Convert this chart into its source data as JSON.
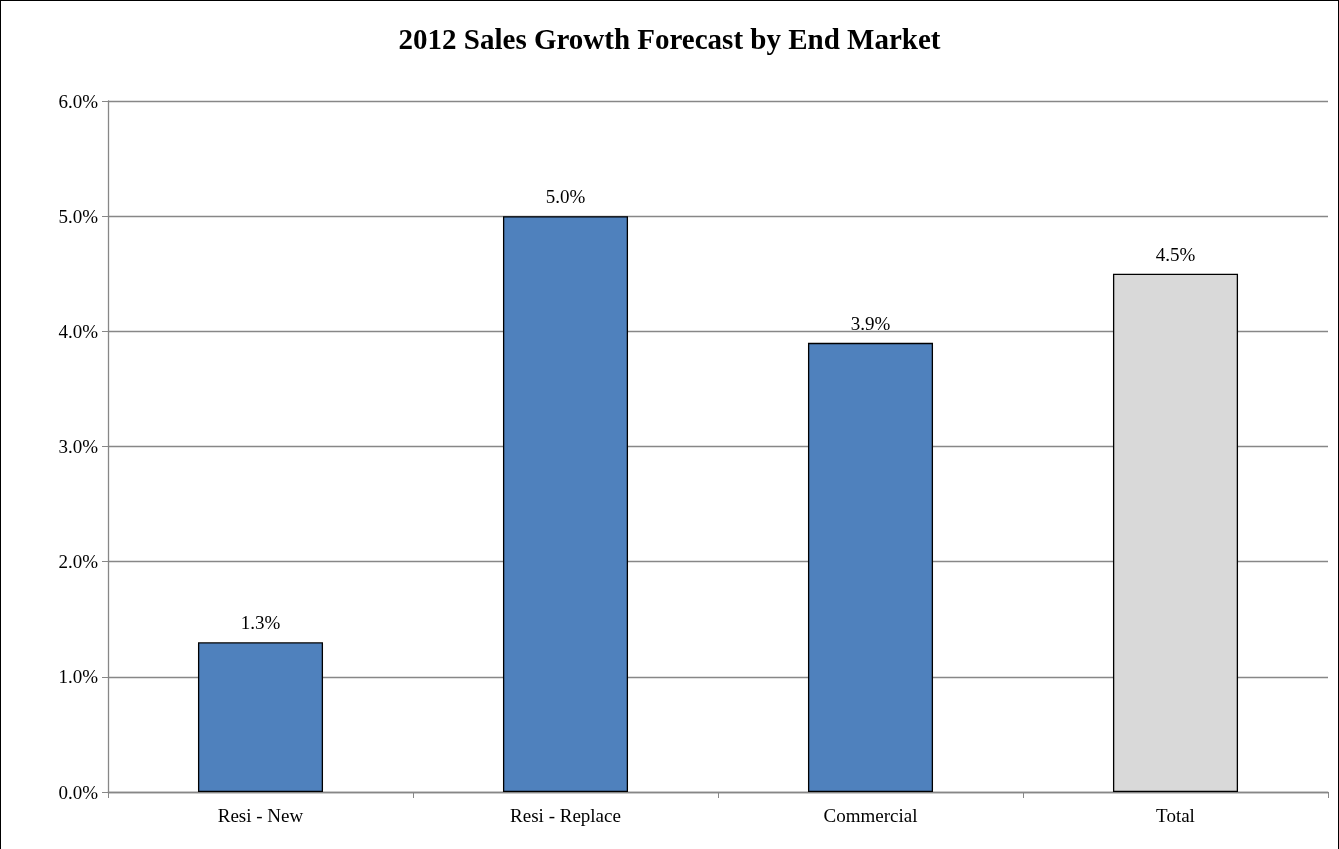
{
  "chart_data": {
    "type": "bar",
    "title": "2012 Sales Growth Forecast by End Market",
    "categories": [
      "Resi - New",
      "Resi - Replace",
      "Commercial",
      "Total"
    ],
    "values": [
      1.3,
      5.0,
      3.9,
      4.5
    ],
    "colors": [
      "#4f81bd",
      "#4f81bd",
      "#4f81bd",
      "#d9d9d9"
    ],
    "value_labels": [
      "1.3%",
      "5.0%",
      "3.9%",
      "4.5%"
    ],
    "ylim": [
      0,
      6
    ],
    "yticks": [
      {
        "value": 0,
        "label": "0.0%"
      },
      {
        "value": 1,
        "label": "1.0%"
      },
      {
        "value": 2,
        "label": "2.0%"
      },
      {
        "value": 3,
        "label": "3.0%"
      },
      {
        "value": 4,
        "label": "4.0%"
      },
      {
        "value": 5,
        "label": "5.0%"
      },
      {
        "value": 6,
        "label": "6.0%"
      }
    ],
    "grid": "y"
  }
}
